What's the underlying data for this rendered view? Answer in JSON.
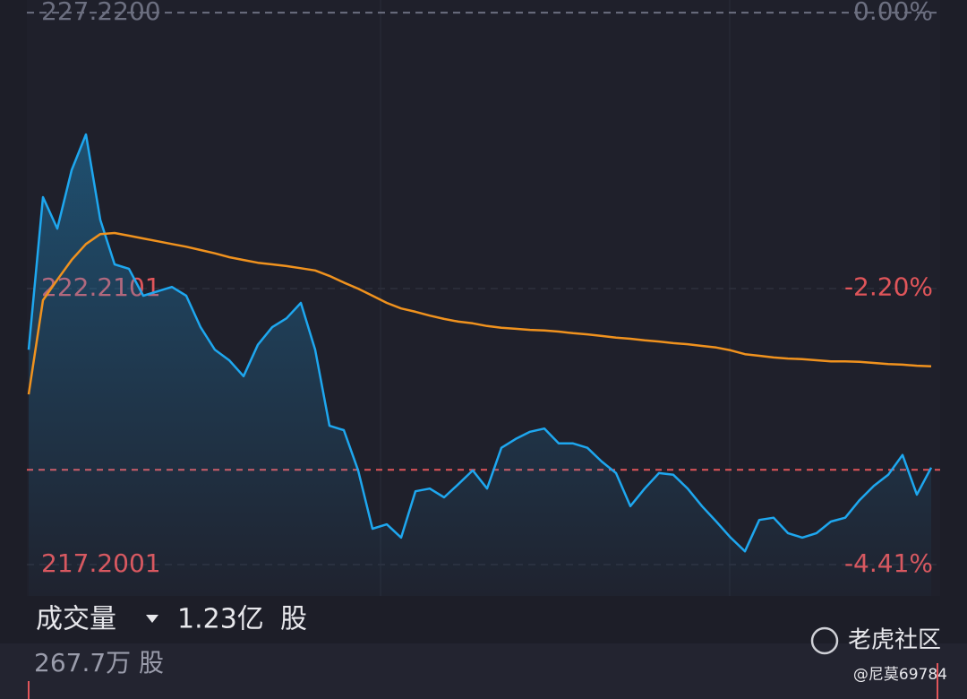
{
  "chart_data": {
    "type": "line",
    "series": [
      {
        "color": "#1ea7ef",
        "values": [
          221.1,
          223.87,
          223.3,
          224.36,
          225.01,
          223.46,
          222.65,
          222.57,
          222.08,
          222.16,
          222.24,
          222.08,
          221.51,
          221.1,
          220.91,
          220.62,
          221.19,
          221.51,
          221.67,
          221.95,
          221.1,
          219.72,
          219.64,
          218.91,
          217.85,
          217.93,
          217.69,
          218.53,
          218.58,
          218.42,
          218.66,
          218.91,
          218.58,
          219.32,
          219.48,
          219.61,
          219.67,
          219.4,
          219.4,
          219.32,
          219.07,
          218.86,
          218.26,
          218.58,
          218.86,
          218.83,
          218.58,
          218.26,
          217.98,
          217.69,
          217.44,
          218.01,
          218.05,
          217.77,
          217.69,
          217.77,
          217.98,
          218.05,
          218.37,
          218.63,
          218.83,
          219.19,
          218.47,
          218.96
        ]
      },
      {
        "color": "#f0921e",
        "values": [
          220.29,
          222.0,
          222.37,
          222.73,
          223.02,
          223.2,
          223.22,
          223.17,
          223.12,
          223.07,
          223.02,
          222.97,
          222.91,
          222.85,
          222.78,
          222.73,
          222.68,
          222.65,
          222.62,
          222.58,
          222.54,
          222.44,
          222.32,
          222.21,
          222.08,
          221.95,
          221.85,
          221.79,
          221.72,
          221.66,
          221.61,
          221.58,
          221.53,
          221.5,
          221.48,
          221.46,
          221.45,
          221.43,
          221.4,
          221.38,
          221.35,
          221.32,
          221.3,
          221.27,
          221.25,
          221.22,
          221.2,
          221.17,
          221.14,
          221.09,
          221.02,
          220.99,
          220.96,
          220.94,
          220.93,
          220.91,
          220.89,
          220.89,
          220.88,
          220.86,
          220.84,
          220.83,
          220.81,
          220.8
        ]
      }
    ],
    "ylim": [
      216.63,
      227.45
    ],
    "yticks": [
      {
        "value": 227.22,
        "label": "227.2200"
      },
      222.2101,
      217.2001
    ],
    "y2lim": [
      -4.66,
      0.1
    ],
    "y2ticks": [
      {
        "value": 0,
        "label": "0.00%"
      },
      {
        "value": -2.2,
        "label": "-2.20%"
      },
      {
        "value": -4.41,
        "label": "-4.41%"
      }
    ],
    "reference_line": 218.92,
    "grid": true
  },
  "volume": {
    "label": "成交量",
    "total": "1.23亿",
    "unit": "股",
    "current": "267.7万 股"
  },
  "watermark": {
    "brand": "老虎社区",
    "user": "@尼莫69784"
  }
}
